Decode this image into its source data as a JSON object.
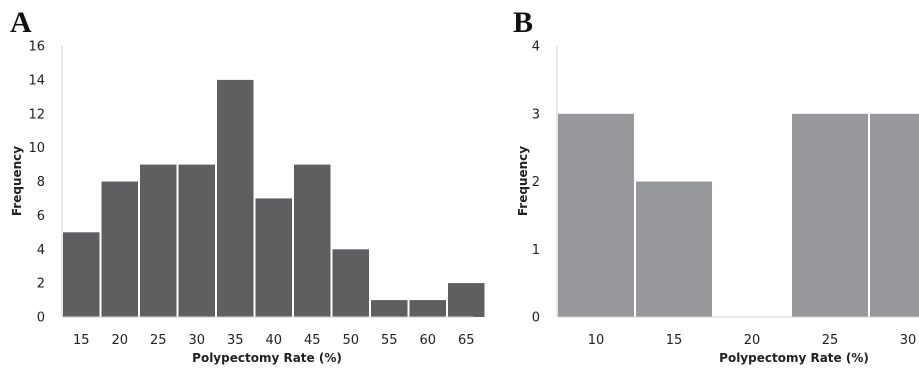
{
  "chart_data": [
    {
      "type": "bar",
      "panel_label": "A",
      "categories": [
        "15",
        "20",
        "25",
        "30",
        "35",
        "40",
        "45",
        "50",
        "55",
        "60",
        "65"
      ],
      "values": [
        5,
        8,
        9,
        9,
        14,
        7,
        9,
        4,
        1,
        1,
        2
      ],
      "ylim": [
        0,
        16
      ],
      "yticks": [
        "0",
        "2",
        "4",
        "6",
        "8",
        "10",
        "12",
        "14",
        "16"
      ],
      "xlabel": "Polypectomy Rate (%)",
      "ylabel": "Frequency",
      "bar_color": "#5f5f61",
      "grid": false
    },
    {
      "type": "bar",
      "panel_label": "B",
      "categories": [
        "10",
        "15",
        "20",
        "25",
        "30"
      ],
      "values": [
        3,
        2,
        0,
        3,
        3
      ],
      "ylim": [
        0,
        4
      ],
      "yticks": [
        "0",
        "1",
        "2",
        "3",
        "4"
      ],
      "xlabel": "Polypectomy Rate (%)",
      "ylabel": "Frequency",
      "bar_color": "#97989b",
      "grid": false
    }
  ]
}
